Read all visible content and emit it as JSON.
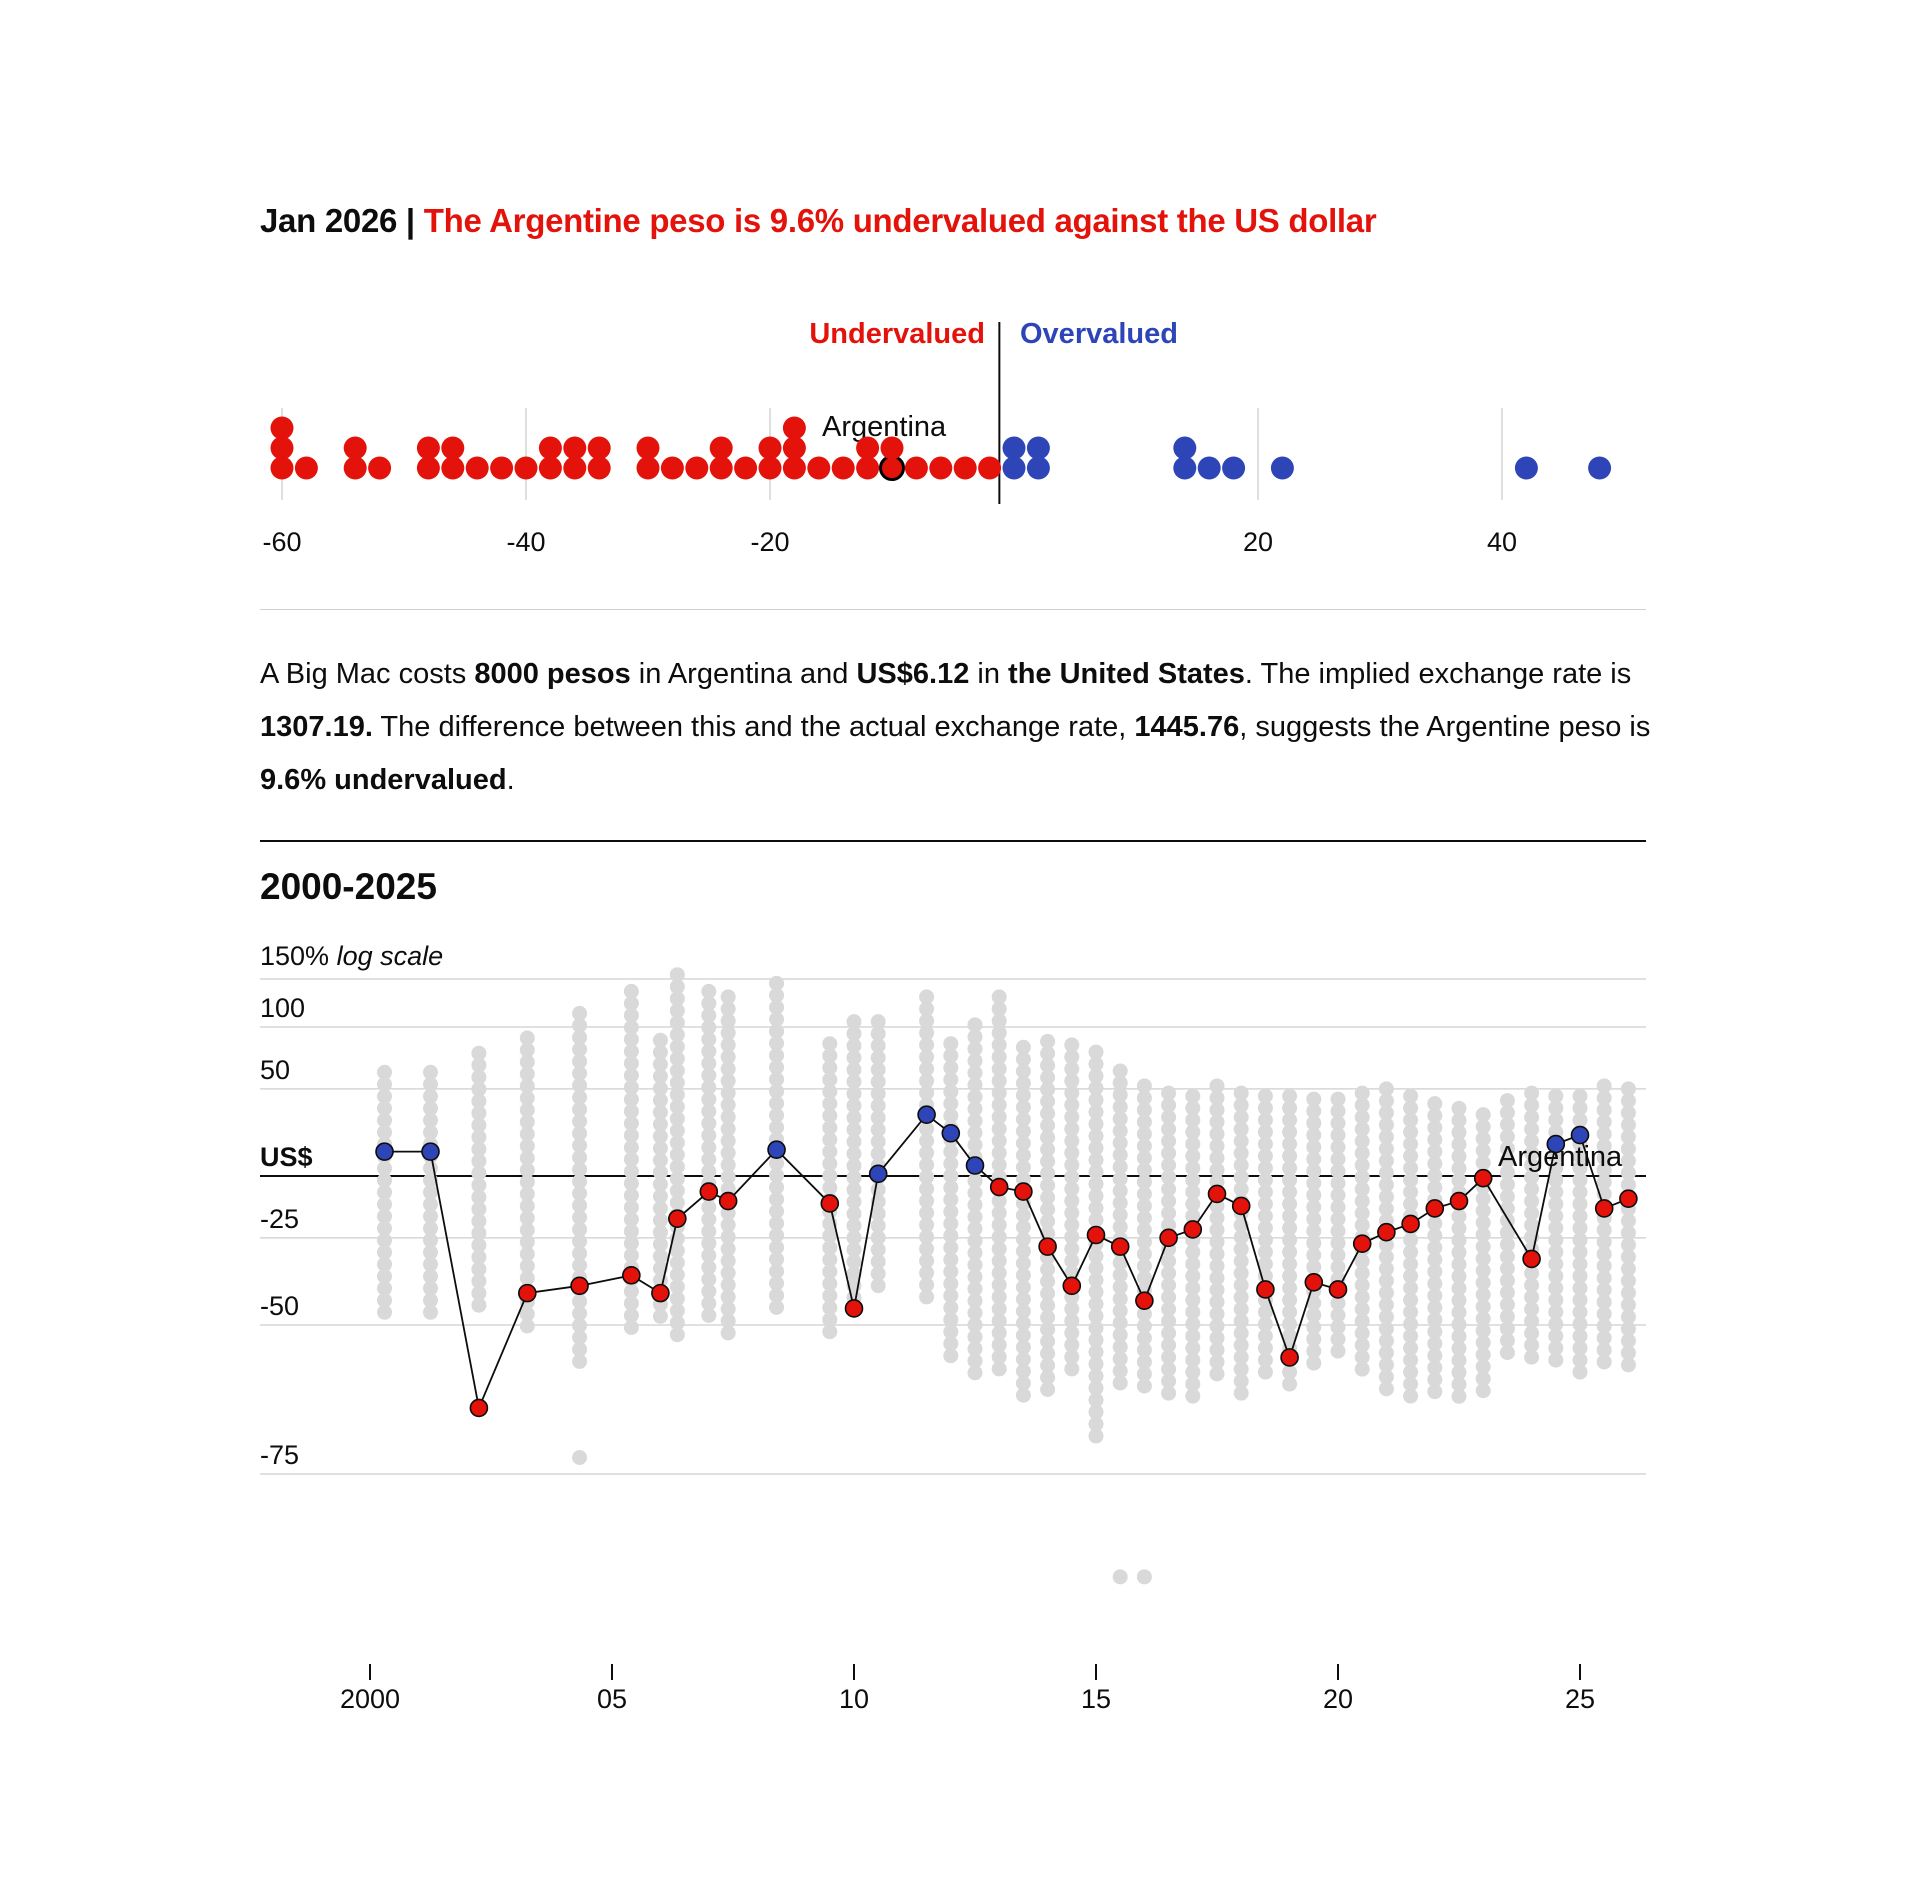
{
  "header": {
    "date": "Jan 2026",
    "separator": "|",
    "headline": "The Argentine peso is 9.6% undervalued against the US dollar"
  },
  "colors": {
    "undervalued": "#e3120b",
    "overvalued": "#2e45b8",
    "others": "#d9d9d9",
    "text": "#0d0d0d"
  },
  "summary": [
    {
      "text": "A Big Mac costs ",
      "bold": false
    },
    {
      "text": "8000 pesos",
      "bold": true
    },
    {
      "text": " in Argentina and ",
      "bold": false
    },
    {
      "text": "US$6.12",
      "bold": true
    },
    {
      "text": " in ",
      "bold": false
    },
    {
      "text": "the United States",
      "bold": true
    },
    {
      "text": ". The implied exchange rate is ",
      "bold": false
    },
    {
      "text": "1307.19.",
      "bold": true
    },
    {
      "text": " The difference between this and the actual exchange rate, ",
      "bold": false
    },
    {
      "text": "1445.76",
      "bold": true
    },
    {
      "text": ", suggests the Argentine peso is ",
      "bold": false
    },
    {
      "text": "9.6% undervalued",
      "bold": true
    },
    {
      "text": ".",
      "bold": false
    }
  ],
  "chart_data": [
    {
      "type": "scatter",
      "subtype": "binned-dot-plot",
      "labels": {
        "left": "Undervalued",
        "right": "Overvalued",
        "highlight": "Argentina"
      },
      "xlim": [
        -60,
        48
      ],
      "xticks": [
        -60,
        -40,
        -20,
        20,
        40
      ],
      "highlight_value": -9.6,
      "bins": [
        {
          "value": -60,
          "count": 3
        },
        {
          "value": -58,
          "count": 1
        },
        {
          "value": -54,
          "count": 2
        },
        {
          "value": -52,
          "count": 1
        },
        {
          "value": -48,
          "count": 2
        },
        {
          "value": -46,
          "count": 2
        },
        {
          "value": -44,
          "count": 1
        },
        {
          "value": -42,
          "count": 1
        },
        {
          "value": -40,
          "count": 1
        },
        {
          "value": -38,
          "count": 2
        },
        {
          "value": -36,
          "count": 2
        },
        {
          "value": -34,
          "count": 2
        },
        {
          "value": -30,
          "count": 2
        },
        {
          "value": -28,
          "count": 1
        },
        {
          "value": -26,
          "count": 1
        },
        {
          "value": -24,
          "count": 2
        },
        {
          "value": -22,
          "count": 1
        },
        {
          "value": -20,
          "count": 2
        },
        {
          "value": -18,
          "count": 3
        },
        {
          "value": -16,
          "count": 1
        },
        {
          "value": -14,
          "count": 1
        },
        {
          "value": -12,
          "count": 2
        },
        {
          "value": -10,
          "count": 2
        },
        {
          "value": -8,
          "count": 1
        },
        {
          "value": -6,
          "count": 1
        },
        {
          "value": -4,
          "count": 1
        },
        {
          "value": -2,
          "count": 1
        },
        {
          "value": 0,
          "count": 2
        },
        {
          "value": 2,
          "count": 2
        },
        {
          "value": 14,
          "count": 2
        },
        {
          "value": 16,
          "count": 1
        },
        {
          "value": 18,
          "count": 1
        },
        {
          "value": 22,
          "count": 1
        },
        {
          "value": 42,
          "count": 1
        },
        {
          "value": 48,
          "count": 1
        }
      ]
    },
    {
      "type": "line",
      "title": "2000-2025",
      "ylabel_value": "150%",
      "ylabel_note": "log scale",
      "yscale": "log",
      "yticks": [
        {
          "value": 150,
          "label": ""
        },
        {
          "value": 100,
          "label": "100"
        },
        {
          "value": 50,
          "label": "50"
        },
        {
          "value": 0,
          "label": "US$"
        },
        {
          "value": -25,
          "label": "-25"
        },
        {
          "value": -50,
          "label": "-50"
        },
        {
          "value": -75,
          "label": "-75"
        }
      ],
      "xticks": [
        {
          "value": 2000,
          "label": "2000"
        },
        {
          "value": 2005,
          "label": "05"
        },
        {
          "value": 2010,
          "label": "10"
        },
        {
          "value": 2015,
          "label": "15"
        },
        {
          "value": 2020,
          "label": "20"
        },
        {
          "value": 2025,
          "label": "25"
        }
      ],
      "series_label": "Argentina",
      "series": [
        {
          "x": [
            2000.3,
            2001.25,
            2002.25,
            2003.25,
            2004.33,
            2005.4,
            2006.0,
            2006.35,
            2007.0,
            2007.4,
            2008.4,
            2009.5,
            2010.0,
            2010.5,
            2011.5,
            2012.0,
            2012.5,
            2013.0,
            2013.5,
            2014.0,
            2014.5,
            2015.0,
            2015.5,
            2016.0,
            2016.5,
            2017.0,
            2017.5,
            2018.0,
            2018.5,
            2019.0,
            2019.5,
            2020.0,
            2020.5,
            2021.0,
            2021.5,
            2022.0,
            2022.5,
            2023.0,
            2024.0,
            2024.5,
            2025.0,
            2025.5,
            2026.0
          ],
          "y": [
            12,
            12,
            -66,
            -42,
            -40,
            -37,
            -42,
            -18,
            -7,
            -11,
            13,
            -12,
            -46,
            1,
            33,
            22,
            5,
            -5,
            -7,
            -28,
            -40,
            -24,
            -28,
            -44,
            -25,
            -22,
            -8,
            -13,
            -41,
            -57,
            -39,
            -41,
            -27,
            -23,
            -20,
            -14,
            -11,
            -1,
            -32,
            16,
            21,
            -14,
            -10
          ]
        }
      ],
      "other_countries_range": [
        [
          2000.3,
          62,
          -47
        ],
        [
          2001.25,
          62,
          -47
        ],
        [
          2002.25,
          77,
          -47
        ],
        [
          2003.25,
          90,
          -52
        ],
        [
          2004.33,
          113,
          -59
        ],
        [
          2005.4,
          136,
          -52
        ],
        [
          2006.0,
          88,
          -50
        ],
        [
          2006.35,
          155,
          -54
        ],
        [
          2007.0,
          136,
          -49
        ],
        [
          2007.4,
          130,
          -54
        ],
        [
          2008.4,
          145,
          -47
        ],
        [
          2009.5,
          85,
          -54
        ],
        [
          2010.0,
          105,
          -46
        ],
        [
          2010.5,
          105,
          -41
        ],
        [
          2011.5,
          130,
          -44
        ],
        [
          2012.0,
          85,
          -57
        ],
        [
          2012.5,
          102,
          -60
        ],
        [
          2013.0,
          130,
          -60
        ],
        [
          2013.5,
          82,
          -64
        ],
        [
          2014.0,
          87,
          -63
        ],
        [
          2014.5,
          84,
          -61
        ],
        [
          2015.0,
          78,
          -71
        ],
        [
          2015.5,
          63,
          -63
        ],
        [
          2016.0,
          52,
          -64
        ],
        [
          2016.5,
          47,
          -64
        ],
        [
          2017.0,
          45,
          -66
        ],
        [
          2017.5,
          52,
          -62
        ],
        [
          2018.0,
          47,
          -64
        ],
        [
          2018.5,
          45,
          -61
        ],
        [
          2019.0,
          45,
          -64
        ],
        [
          2019.5,
          43,
          -60
        ],
        [
          2020.0,
          43,
          -58
        ],
        [
          2020.5,
          47,
          -61
        ],
        [
          2021.0,
          50,
          -63
        ],
        [
          2021.5,
          45,
          -65
        ],
        [
          2022.0,
          40,
          -65
        ],
        [
          2022.5,
          37,
          -65
        ],
        [
          2023.0,
          33,
          -65
        ],
        [
          2023.5,
          42,
          -57
        ],
        [
          2024.0,
          47,
          -58
        ],
        [
          2024.5,
          45,
          -59
        ],
        [
          2025.0,
          45,
          -60
        ],
        [
          2025.5,
          52,
          -58
        ],
        [
          2026.0,
          50,
          -60
        ]
      ],
      "other_outliers": [
        [
          2004.33,
          -73
        ],
        [
          2015.5,
          -84.5
        ],
        [
          2016.0,
          -84.5
        ]
      ]
    }
  ]
}
